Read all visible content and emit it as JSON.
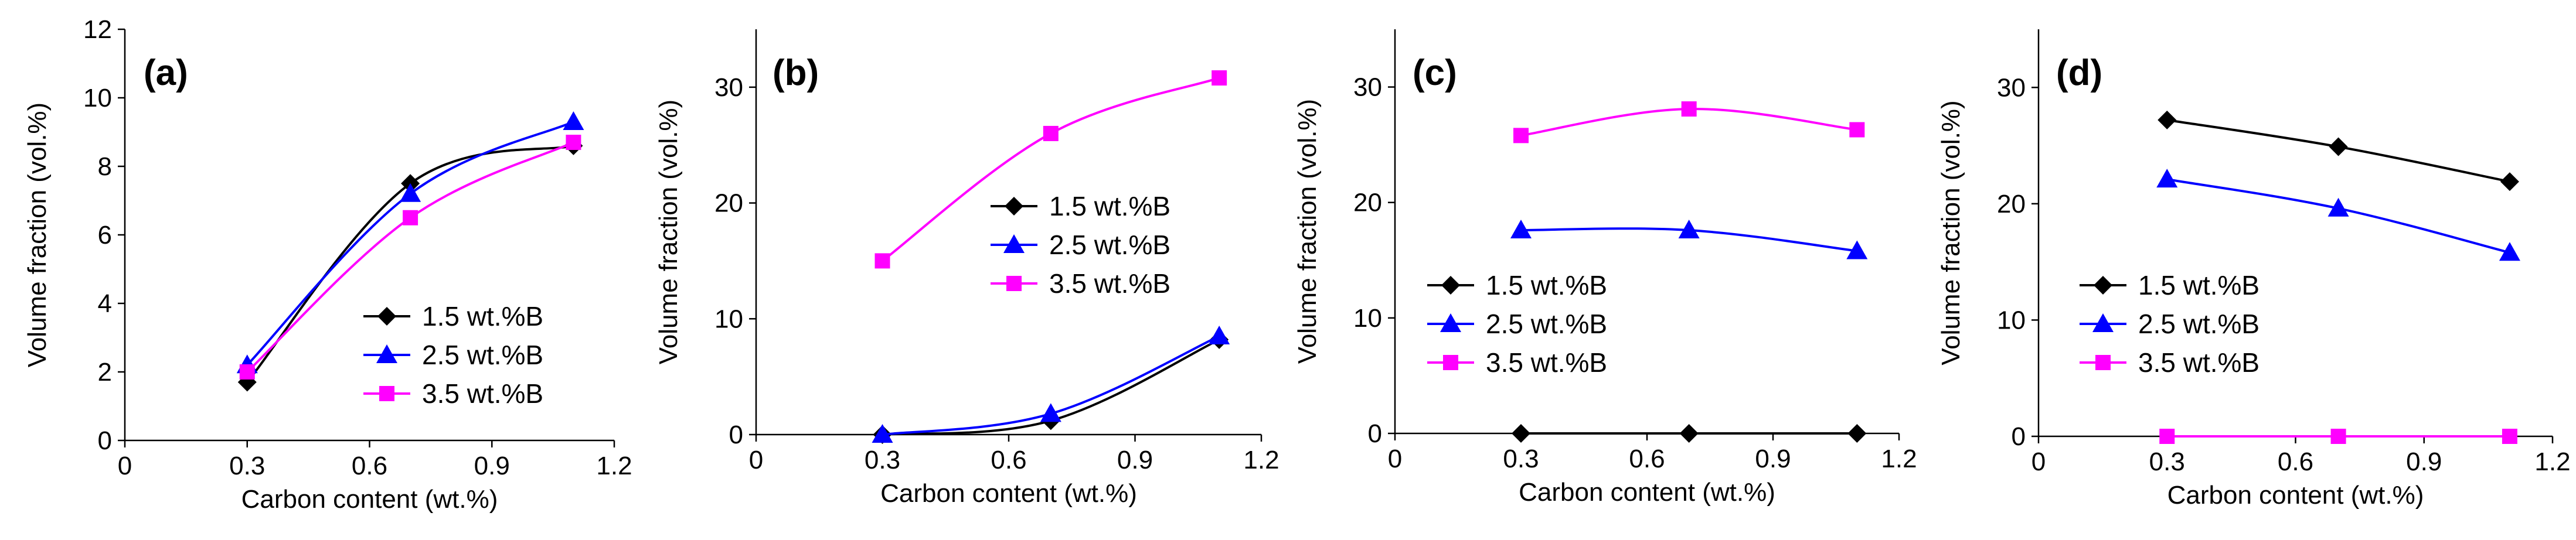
{
  "chart_data": [
    {
      "panel": "(a)",
      "type": "line",
      "xlabel": "Carbon content (wt.%)",
      "ylabel": "Volume fraction (vol.%)",
      "xlim": [
        0,
        1.2
      ],
      "ylim": [
        0,
        12
      ],
      "xticks": [
        "0",
        "0.3",
        "0.6",
        "0.9",
        "1.2"
      ],
      "yticks": [
        "0",
        "2",
        "4",
        "6",
        "8",
        "10",
        "12"
      ],
      "legend_position": "lower-right",
      "series": [
        {
          "name": "1.5 wt.%B",
          "color": "#000000",
          "marker": "diamond",
          "x": [
            0.3,
            0.7,
            1.1
          ],
          "y": [
            1.7,
            7.5,
            8.6
          ]
        },
        {
          "name": "2.5 wt.%B",
          "color": "#0000ff",
          "marker": "triangle",
          "x": [
            0.3,
            0.7,
            1.1
          ],
          "y": [
            2.2,
            7.2,
            9.3
          ]
        },
        {
          "name": "3.5 wt.%B",
          "color": "#ff00ff",
          "marker": "square",
          "x": [
            0.3,
            0.7,
            1.1
          ],
          "y": [
            2.0,
            6.5,
            8.7
          ]
        }
      ]
    },
    {
      "panel": "(b)",
      "type": "line",
      "xlabel": "Carbon content (wt.%)",
      "ylabel": "Volume fraction (vol.%)",
      "xlim": [
        0,
        1.2
      ],
      "ylim": [
        0,
        35
      ],
      "xticks": [
        "0",
        "0.3",
        "0.6",
        "0.9",
        "1.2"
      ],
      "yticks": [
        "0",
        "10",
        "20",
        "30"
      ],
      "legend_position": "center-right",
      "series": [
        {
          "name": "1.5 wt.%B",
          "color": "#000000",
          "marker": "diamond",
          "x": [
            0.3,
            0.7,
            1.1
          ],
          "y": [
            0.0,
            1.2,
            8.2
          ]
        },
        {
          "name": "2.5 wt.%B",
          "color": "#0000ff",
          "marker": "triangle",
          "x": [
            0.3,
            0.7,
            1.1
          ],
          "y": [
            0.0,
            1.8,
            8.5
          ]
        },
        {
          "name": "3.5 wt.%B",
          "color": "#ff00ff",
          "marker": "square",
          "x": [
            0.3,
            0.7,
            1.1
          ],
          "y": [
            15.0,
            26.0,
            30.8
          ]
        }
      ]
    },
    {
      "panel": "(c)",
      "type": "line",
      "xlabel": "Carbon content (wt.%)",
      "ylabel": "Volume fraction (vol.%)",
      "xlim": [
        0,
        1.2
      ],
      "ylim": [
        0,
        35
      ],
      "xticks": [
        "0",
        "0.3",
        "0.6",
        "0.9",
        "1.2"
      ],
      "yticks": [
        "0",
        "10",
        "20",
        "30"
      ],
      "legend_position": "lower-left",
      "series": [
        {
          "name": "1.5 wt.%B",
          "color": "#000000",
          "marker": "diamond",
          "x": [
            0.3,
            0.7,
            1.1
          ],
          "y": [
            0.0,
            0.0,
            0.0
          ]
        },
        {
          "name": "2.5 wt.%B",
          "color": "#0000ff",
          "marker": "triangle",
          "x": [
            0.3,
            0.7,
            1.1
          ],
          "y": [
            17.6,
            17.6,
            15.8
          ]
        },
        {
          "name": "3.5 wt.%B",
          "color": "#ff00ff",
          "marker": "square",
          "x": [
            0.3,
            0.7,
            1.1
          ],
          "y": [
            25.8,
            28.1,
            26.3
          ]
        }
      ]
    },
    {
      "panel": "(d)",
      "type": "line",
      "xlabel": "Carbon content (wt.%)",
      "ylabel": "Volume fraction (vol.%)",
      "xlim": [
        0,
        1.2
      ],
      "ylim": [
        0,
        35
      ],
      "xticks": [
        "0",
        "0.3",
        "0.6",
        "0.9",
        "1.2"
      ],
      "yticks": [
        "0",
        "10",
        "20",
        "30"
      ],
      "legend_position": "lower-left",
      "series": [
        {
          "name": "1.5 wt.%B",
          "color": "#000000",
          "marker": "diamond",
          "x": [
            0.3,
            0.7,
            1.1
          ],
          "y": [
            27.2,
            24.9,
            21.9
          ]
        },
        {
          "name": "2.5 wt.%B",
          "color": "#0000ff",
          "marker": "triangle",
          "x": [
            0.3,
            0.7,
            1.1
          ],
          "y": [
            22.1,
            19.6,
            15.8
          ]
        },
        {
          "name": "3.5 wt.%B",
          "color": "#ff00ff",
          "marker": "square",
          "x": [
            0.3,
            0.7,
            1.1
          ],
          "y": [
            0.0,
            0.0,
            0.0
          ]
        }
      ]
    }
  ]
}
